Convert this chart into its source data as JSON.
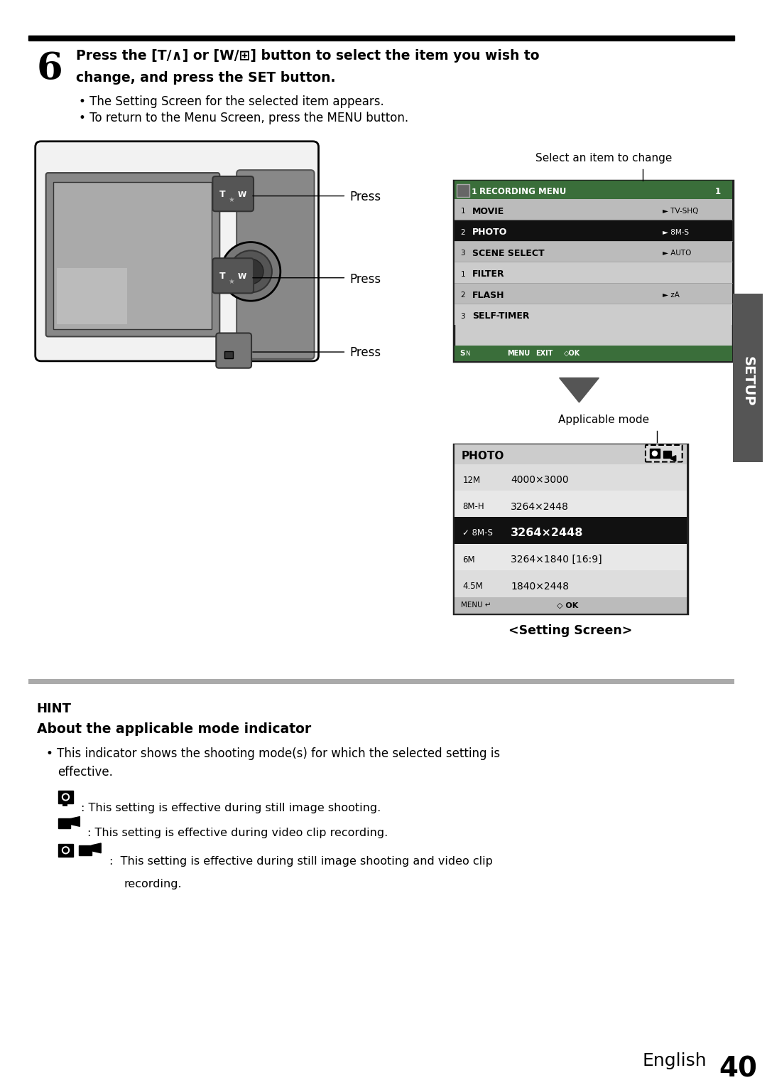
{
  "page_bg": "#ffffff",
  "top_bar_color": "#000000",
  "hint_bar_color": "#c8c8c8",
  "step_number": "6",
  "bullet1": "The Setting Screen for the selected item appears.",
  "bullet2": "To return to the Menu Screen, press the MENU button.",
  "press_label": "Press",
  "select_label": "Select an item to change",
  "applicable_label": "Applicable mode",
  "setting_screen_label": "<Setting Screen>",
  "menu_title": "RECORDING MENU 1",
  "setup_label": "SETUP",
  "hint_title": "HINT",
  "hint_subtitle": "About the applicable mode indicator",
  "hint_bullet_line1": "This indicator shows the shooting mode(s) for which the selected setting is",
  "hint_bullet_line2": "effective.",
  "hint_item1_text": ": This setting is effective during still image shooting.",
  "hint_item2_text": ": This setting is effective during video clip recording.",
  "hint_item3_text": ":  This setting is effective during still image shooting and video clip",
  "hint_item3_text2": "recording.",
  "page_label": "English",
  "page_number": "40"
}
